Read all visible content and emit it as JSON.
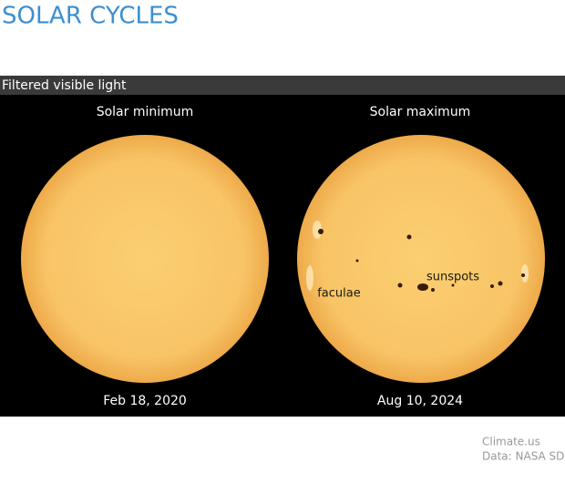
{
  "header": {
    "title": "SOLAR CYCLES"
  },
  "panel": {
    "label": "Filtered visible light",
    "images": [
      {
        "caption": "Solar minimum",
        "date": "Feb 18, 2020"
      },
      {
        "caption": "Solar maximum",
        "date": "Aug 10, 2024",
        "annotations": [
          "sunspots",
          "faculae"
        ]
      }
    ]
  },
  "credits": [
    "Climate.us",
    "Data: NASA SDO"
  ]
}
